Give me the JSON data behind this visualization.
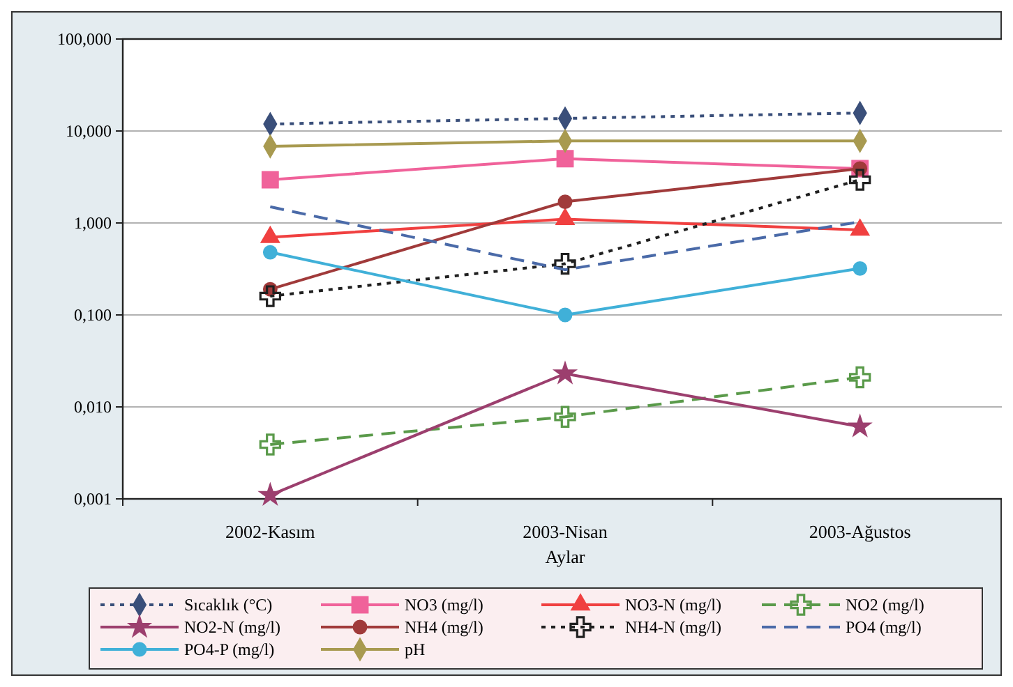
{
  "chart_data": {
    "type": "line",
    "xlabel": "Aylar",
    "categories": [
      "2002-Kasım",
      "2003-Nisan",
      "2003-Ağustos"
    ],
    "log": "y",
    "grid": "y",
    "legend": "bottom",
    "ylim": [
      0.001,
      100
    ],
    "yticks": [
      {
        "value": 0.001,
        "label": "0,001"
      },
      {
        "value": 0.01,
        "label": "0,010"
      },
      {
        "value": 0.1,
        "label": "0,100"
      },
      {
        "value": 1,
        "label": "1,000"
      },
      {
        "value": 10,
        "label": "10,000"
      },
      {
        "value": 100,
        "label": "100,000"
      }
    ],
    "series": [
      {
        "name": "Sıcaklık (°C)",
        "color": "#3a4f7a",
        "marker": "diamond",
        "line_style": "dotted",
        "values": [
          11.9,
          13.7,
          15.7
        ]
      },
      {
        "name": "NO3 (mg/l)",
        "color": "#f0629a",
        "marker": "square",
        "line_style": "solid",
        "values": [
          2.95,
          5.0,
          3.9
        ]
      },
      {
        "name": "NO3-N (mg/l)",
        "color": "#f04040",
        "marker": "triangle",
        "line_style": "solid",
        "values": [
          0.7,
          1.1,
          0.84
        ]
      },
      {
        "name": "NO2 (mg/l)",
        "color": "#5a9a4a",
        "marker": "cross",
        "line_style": "dashed",
        "values": [
          0.0039,
          0.0078,
          0.021
        ]
      },
      {
        "name": "NO2-N (mg/l)",
        "color": "#9c3f6e",
        "marker": "star",
        "line_style": "solid",
        "values": [
          0.0011,
          0.023,
          0.0061
        ]
      },
      {
        "name": "NH4 (mg/l)",
        "color": "#a03a3a",
        "marker": "circle",
        "line_style": "solid",
        "values": [
          0.19,
          1.7,
          3.9
        ]
      },
      {
        "name": "NH4-N (mg/l)",
        "color": "#202020",
        "marker": "cross",
        "line_style": "dotted",
        "values": [
          0.16,
          0.36,
          2.95
        ]
      },
      {
        "name": "PO4 (mg/l)",
        "color": "#4a6aa8",
        "marker": "none",
        "line_style": "dashed",
        "values": [
          1.5,
          0.31,
          1.03
        ]
      },
      {
        "name": "PO4-P (mg/l)",
        "color": "#40b0d8",
        "marker": "circle",
        "line_style": "solid",
        "values": [
          0.48,
          0.1,
          0.32
        ]
      },
      {
        "name": "pH",
        "color": "#a89a50",
        "marker": "diamond",
        "line_style": "solid",
        "values": [
          6.8,
          7.8,
          7.8
        ]
      }
    ]
  }
}
